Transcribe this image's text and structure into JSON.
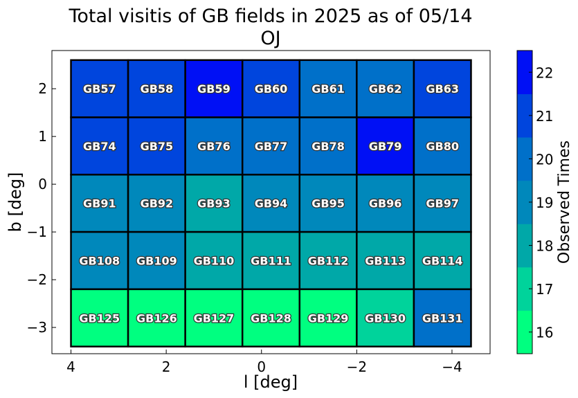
{
  "chart_data": {
    "type": "heatmap",
    "title": "Total visitis of GB fields in 2025 as of 05/14",
    "subtitle": "OJ",
    "xlabel": "l [deg]",
    "ylabel": "b [deg]",
    "xlim": [
      4.4,
      -4.8
    ],
    "ylim": [
      -3.55,
      2.8
    ],
    "x_ticks": [
      4,
      2,
      0,
      -2,
      -4
    ],
    "x_tick_labels": [
      "4",
      "2",
      "0",
      "−2",
      "−4"
    ],
    "y_ticks": [
      2,
      1,
      0,
      -1,
      -2,
      -3
    ],
    "y_tick_labels": [
      "2",
      "1",
      "0",
      "−1",
      "−2",
      "−3"
    ],
    "grid": false,
    "cell_edges_l": [
      4.0,
      2.8,
      1.6,
      0.4,
      -0.8,
      -2.0,
      -3.2,
      -4.4
    ],
    "cell_edges_b": [
      2.6,
      1.4,
      0.2,
      -1.0,
      -2.2,
      -3.4
    ],
    "colorbar": {
      "label": "Observed Times",
      "min": 15.5,
      "max": 22.5,
      "ticks": [
        16,
        17,
        18,
        19,
        20,
        21,
        22
      ],
      "tick_labels": [
        "16",
        "17",
        "18",
        "19",
        "20",
        "21",
        "22"
      ],
      "colors": [
        "#00ff80",
        "#00d39b",
        "#00a8a8",
        "#0088bb",
        "#0070c9",
        "#0045dd",
        "#0010f5"
      ]
    },
    "fields": [
      [
        {
          "name": "GB57",
          "value": 21
        },
        {
          "name": "GB58",
          "value": 21
        },
        {
          "name": "GB59",
          "value": 22
        },
        {
          "name": "GB60",
          "value": 21
        },
        {
          "name": "GB61",
          "value": 20
        },
        {
          "name": "GB62",
          "value": 20
        },
        {
          "name": "GB63",
          "value": 21
        }
      ],
      [
        {
          "name": "GB74",
          "value": 21
        },
        {
          "name": "GB75",
          "value": 21
        },
        {
          "name": "GB76",
          "value": 20
        },
        {
          "name": "GB77",
          "value": 20
        },
        {
          "name": "GB78",
          "value": 20
        },
        {
          "name": "GB79",
          "value": 22
        },
        {
          "name": "GB80",
          "value": 20
        }
      ],
      [
        {
          "name": "GB91",
          "value": 19
        },
        {
          "name": "GB92",
          "value": 19
        },
        {
          "name": "GB93",
          "value": 18
        },
        {
          "name": "GB94",
          "value": 19
        },
        {
          "name": "GB95",
          "value": 19
        },
        {
          "name": "GB96",
          "value": 19
        },
        {
          "name": "GB97",
          "value": 19
        }
      ],
      [
        {
          "name": "GB108",
          "value": 19
        },
        {
          "name": "GB109",
          "value": 19
        },
        {
          "name": "GB110",
          "value": 18
        },
        {
          "name": "GB111",
          "value": 18
        },
        {
          "name": "GB112",
          "value": 18
        },
        {
          "name": "GB113",
          "value": 18
        },
        {
          "name": "GB114",
          "value": 18
        }
      ],
      [
        {
          "name": "GB125",
          "value": 16
        },
        {
          "name": "GB126",
          "value": 16
        },
        {
          "name": "GB127",
          "value": 16
        },
        {
          "name": "GB128",
          "value": 16
        },
        {
          "name": "GB129",
          "value": 16
        },
        {
          "name": "GB130",
          "value": 17
        },
        {
          "name": "GB131",
          "value": 20
        }
      ]
    ]
  }
}
